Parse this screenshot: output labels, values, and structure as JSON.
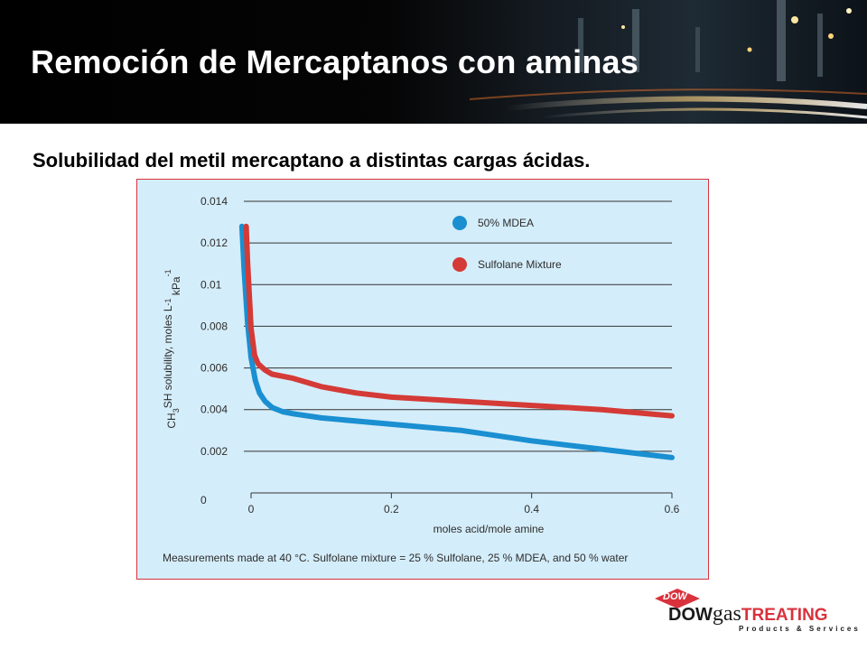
{
  "slide": {
    "title": "Remoción de Mercaptanos con aminas",
    "subtitle": "Solubilidad del metil mercaptano a distintas cargas ácidas."
  },
  "chart_data": {
    "type": "line",
    "title": "",
    "xlabel": "moles acid/mole amine",
    "ylabel_parts": [
      "CH",
      "3",
      "SH solubility, moles L",
      "-1",
      " kPa",
      "-1"
    ],
    "xlim": [
      0,
      0.6
    ],
    "ylim": [
      0,
      0.014
    ],
    "x_ticks": [
      "0",
      "0.2",
      "0.4",
      "0.6"
    ],
    "y_ticks": [
      "0",
      "0.002",
      "0.004",
      "0.006",
      "0.008",
      "0.01",
      "0.012",
      "0.014"
    ],
    "grid": "horizontal",
    "legend_position": "top-right",
    "series": [
      {
        "name": "50% MDEA",
        "color": "#1a8fd1",
        "points": [
          [
            -0.013,
            0.0128
          ],
          [
            -0.01,
            0.0108
          ],
          [
            -0.005,
            0.0082
          ],
          [
            0,
            0.0065
          ],
          [
            0.006,
            0.0054
          ],
          [
            0.012,
            0.0048
          ],
          [
            0.02,
            0.0044
          ],
          [
            0.03,
            0.0041
          ],
          [
            0.045,
            0.0039
          ],
          [
            0.06,
            0.0038
          ],
          [
            0.1,
            0.0036
          ],
          [
            0.2,
            0.0033
          ],
          [
            0.3,
            0.003
          ],
          [
            0.4,
            0.0025
          ],
          [
            0.5,
            0.0021
          ],
          [
            0.6,
            0.0017
          ]
        ]
      },
      {
        "name": "Sulfolane Mixture",
        "color": "#d43a36",
        "points": [
          [
            -0.007,
            0.0128
          ],
          [
            -0.005,
            0.0111
          ],
          [
            0,
            0.0079
          ],
          [
            0.005,
            0.0066
          ],
          [
            0.01,
            0.0062
          ],
          [
            0.02,
            0.0059
          ],
          [
            0.03,
            0.0057
          ],
          [
            0.06,
            0.0055
          ],
          [
            0.1,
            0.0051
          ],
          [
            0.15,
            0.0048
          ],
          [
            0.2,
            0.0046
          ],
          [
            0.3,
            0.0044
          ],
          [
            0.4,
            0.0042
          ],
          [
            0.5,
            0.004
          ],
          [
            0.6,
            0.0037
          ]
        ]
      }
    ],
    "note": "Measurements made at 40 °C. Sulfolane mixture = 25 % Sulfolane, 25 % MDEA, and 50 % water"
  },
  "logo": {
    "diamond_text": "DOW",
    "word_dow": "DOW",
    "word_gas": "gas",
    "word_treating": "TREATING",
    "tagline": "Products & Services",
    "colors": {
      "red": "#d9323c",
      "dark": "#1a1a1a"
    }
  }
}
